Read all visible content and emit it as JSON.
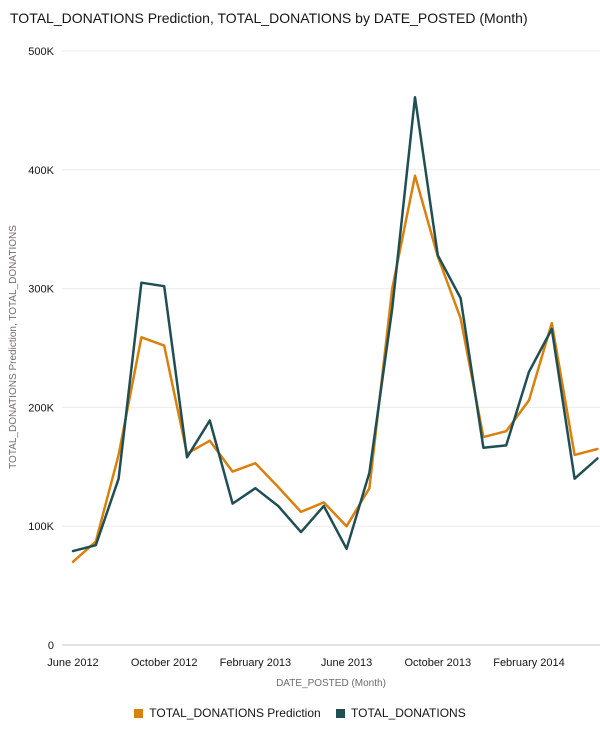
{
  "title": "TOTAL_DONATIONS Prediction, TOTAL_DONATIONS by DATE_POSTED (Month)",
  "chart_data": {
    "type": "line",
    "title": "TOTAL_DONATIONS Prediction, TOTAL_DONATIONS by DATE_POSTED (Month)",
    "xlabel": "DATE_POSTED (Month)",
    "ylabel": "TOTAL_DONATIONS Prediction, TOTAL_DONATIONS",
    "ylim": [
      0,
      500000
    ],
    "y_ticks": [
      0,
      100000,
      200000,
      300000,
      400000,
      500000
    ],
    "y_tick_labels": [
      "0",
      "100K",
      "200K",
      "300K",
      "400K",
      "500K"
    ],
    "x_ticks": [
      0,
      4,
      8,
      12,
      16,
      20
    ],
    "x_tick_labels": [
      "June 2012",
      "October 2012",
      "February 2013",
      "June 2013",
      "October 2013",
      "February 2014"
    ],
    "x": [
      "2012-06",
      "2012-07",
      "2012-08",
      "2012-09",
      "2012-10",
      "2012-11",
      "2012-12",
      "2013-01",
      "2013-02",
      "2013-03",
      "2013-04",
      "2013-05",
      "2013-06",
      "2013-07",
      "2013-08",
      "2013-09",
      "2013-10",
      "2013-11",
      "2013-12",
      "2014-01",
      "2014-02",
      "2014-03",
      "2014-04",
      "2014-05"
    ],
    "series": [
      {
        "name": "TOTAL_DONATIONS Prediction",
        "color": "#d9800d",
        "values": [
          70000,
          87000,
          160000,
          259000,
          252000,
          161000,
          172000,
          146000,
          153000,
          133000,
          112000,
          120000,
          100000,
          132000,
          300000,
          395000,
          327000,
          275000,
          175000,
          180000,
          206000,
          271000,
          160000,
          165000
        ]
      },
      {
        "name": "TOTAL_DONATIONS",
        "color": "#1f4f55",
        "values": [
          79000,
          84000,
          140000,
          305000,
          302000,
          158000,
          189000,
          119000,
          132000,
          117000,
          95000,
          117000,
          81000,
          145000,
          283000,
          461000,
          328000,
          292000,
          166000,
          168000,
          230000,
          266000,
          140000,
          157000
        ]
      }
    ],
    "legend": "bottom"
  }
}
